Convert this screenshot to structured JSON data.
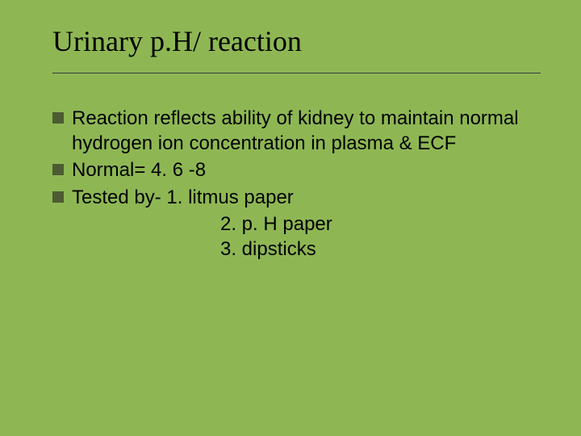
{
  "slide": {
    "title": "Urinary p.H/ reaction",
    "background_color": "#8eb754",
    "title_font": "Times New Roman",
    "title_fontsize": 36,
    "title_color": "#000000",
    "underline_color": "#3a3a3a",
    "body_font": "Arial",
    "body_fontsize": 24,
    "body_color": "#000000",
    "bullet_color": "#4d5b33",
    "bullets": [
      {
        "text": "Reaction reflects ability of kidney to maintain normal hydrogen ion concentration in plasma & ECF"
      },
      {
        "text": "Normal= 4. 6 -8"
      },
      {
        "text": "Tested by- 1. litmus paper"
      }
    ],
    "sublines": [
      "2. p. H paper",
      "3. dipsticks"
    ]
  }
}
